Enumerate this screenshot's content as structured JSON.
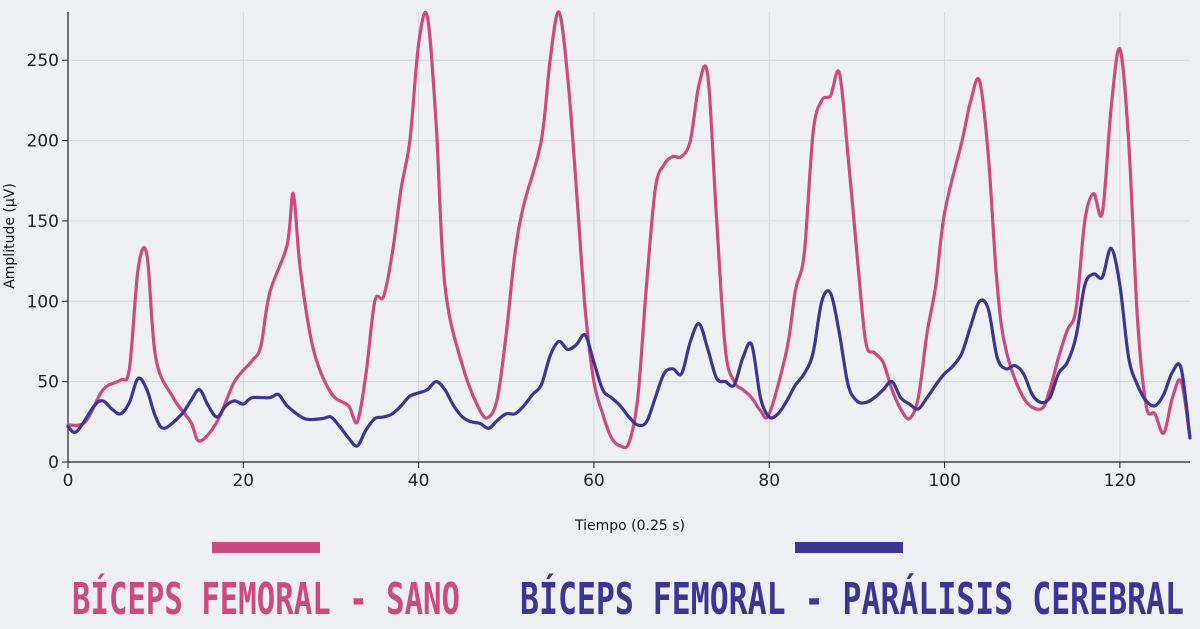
{
  "colors": {
    "background": "#eef0f3",
    "grid": "#d4d7dc",
    "axis": "#222222",
    "sano": "#cc4a7e",
    "paralisis": "#3b3594"
  },
  "chart_data": {
    "type": "line",
    "xlabel": "Tiempo (0.25 s)",
    "ylabel": "Amplitude (µV)",
    "xlim": [
      0,
      128
    ],
    "ylim": [
      0,
      280
    ],
    "x_ticks": [
      0,
      20,
      40,
      60,
      80,
      100,
      120
    ],
    "y_ticks": [
      0,
      50,
      100,
      150,
      200,
      250
    ],
    "grid": true,
    "legend_position": "bottom",
    "series": [
      {
        "name": "BÍCEPS FEMORAL - SANO",
        "color": "#cc4a7e",
        "points": [
          [
            0,
            23
          ],
          [
            2,
            25
          ],
          [
            4,
            45
          ],
          [
            6,
            51
          ],
          [
            7,
            58
          ],
          [
            8,
            120
          ],
          [
            9,
            129
          ],
          [
            10,
            65
          ],
          [
            12,
            40
          ],
          [
            14,
            25
          ],
          [
            15,
            13
          ],
          [
            17,
            25
          ],
          [
            19,
            50
          ],
          [
            21,
            63
          ],
          [
            22,
            72
          ],
          [
            23,
            105
          ],
          [
            25,
            135
          ],
          [
            25.7,
            167
          ],
          [
            26.5,
            120
          ],
          [
            28,
            70
          ],
          [
            30,
            43
          ],
          [
            32,
            35
          ],
          [
            33,
            25
          ],
          [
            34,
            55
          ],
          [
            35,
            100
          ],
          [
            36,
            103
          ],
          [
            37,
            130
          ],
          [
            38,
            170
          ],
          [
            39,
            200
          ],
          [
            40,
            260
          ],
          [
            41,
            277
          ],
          [
            42,
            210
          ],
          [
            43,
            110
          ],
          [
            45,
            60
          ],
          [
            47,
            32
          ],
          [
            48,
            28
          ],
          [
            49,
            40
          ],
          [
            50,
            80
          ],
          [
            51,
            130
          ],
          [
            52,
            160
          ],
          [
            54,
            200
          ],
          [
            55,
            250
          ],
          [
            56,
            280
          ],
          [
            57,
            240
          ],
          [
            58,
            170
          ],
          [
            59,
            95
          ],
          [
            60,
            50
          ],
          [
            61,
            30
          ],
          [
            62,
            15
          ],
          [
            63,
            10
          ],
          [
            64,
            12
          ],
          [
            65,
            40
          ],
          [
            66,
            110
          ],
          [
            67,
            170
          ],
          [
            68,
            185
          ],
          [
            69,
            190
          ],
          [
            70,
            190
          ],
          [
            71,
            200
          ],
          [
            72,
            235
          ],
          [
            73,
            240
          ],
          [
            74,
            150
          ],
          [
            75,
            70
          ],
          [
            76,
            50
          ],
          [
            77,
            45
          ],
          [
            78,
            40
          ],
          [
            79,
            32
          ],
          [
            80,
            30
          ],
          [
            82,
            70
          ],
          [
            83,
            107
          ],
          [
            84,
            130
          ],
          [
            85,
            205
          ],
          [
            86,
            225
          ],
          [
            87,
            228
          ],
          [
            88,
            242
          ],
          [
            89,
            190
          ],
          [
            90,
            130
          ],
          [
            91,
            75
          ],
          [
            92,
            68
          ],
          [
            93,
            62
          ],
          [
            94,
            45
          ],
          [
            95,
            33
          ],
          [
            96,
            27
          ],
          [
            97,
            40
          ],
          [
            98,
            80
          ],
          [
            99,
            110
          ],
          [
            100,
            155
          ],
          [
            102,
            200
          ],
          [
            103,
            225
          ],
          [
            104,
            237
          ],
          [
            105,
            190
          ],
          [
            106,
            110
          ],
          [
            107,
            70
          ],
          [
            109,
            40
          ],
          [
            111,
            33
          ],
          [
            112,
            45
          ],
          [
            113,
            65
          ],
          [
            114,
            82
          ],
          [
            115,
            95
          ],
          [
            116,
            150
          ],
          [
            117,
            167
          ],
          [
            118,
            155
          ],
          [
            119,
            220
          ],
          [
            120,
            257
          ],
          [
            121,
            200
          ],
          [
            122,
            90
          ],
          [
            123,
            35
          ],
          [
            124,
            30
          ],
          [
            125,
            18
          ],
          [
            126,
            40
          ],
          [
            127,
            50
          ],
          [
            128,
            15
          ]
        ]
      },
      {
        "name": "BÍCEPS FEMORAL - PARÁLISIS CEREBRAL",
        "color": "#3b3594",
        "points": [
          [
            0,
            22
          ],
          [
            1,
            19
          ],
          [
            3,
            35
          ],
          [
            4,
            38
          ],
          [
            5,
            33
          ],
          [
            6,
            30
          ],
          [
            7,
            37
          ],
          [
            8,
            52
          ],
          [
            9,
            45
          ],
          [
            10,
            28
          ],
          [
            11,
            21
          ],
          [
            13,
            30
          ],
          [
            14,
            38
          ],
          [
            15,
            45
          ],
          [
            16,
            35
          ],
          [
            17,
            28
          ],
          [
            18,
            35
          ],
          [
            19,
            38
          ],
          [
            20,
            36
          ],
          [
            21,
            40
          ],
          [
            23,
            40
          ],
          [
            24,
            42
          ],
          [
            25,
            35
          ],
          [
            27,
            27
          ],
          [
            29,
            27
          ],
          [
            30,
            28
          ],
          [
            31,
            22
          ],
          [
            32,
            15
          ],
          [
            33,
            10
          ],
          [
            34,
            20
          ],
          [
            35,
            27
          ],
          [
            36,
            28
          ],
          [
            37,
            30
          ],
          [
            38,
            35
          ],
          [
            39,
            41
          ],
          [
            40,
            43
          ],
          [
            41,
            45
          ],
          [
            42,
            50
          ],
          [
            43,
            45
          ],
          [
            44,
            35
          ],
          [
            45,
            28
          ],
          [
            46,
            25
          ],
          [
            47,
            24
          ],
          [
            48,
            21
          ],
          [
            49,
            26
          ],
          [
            50,
            30
          ],
          [
            51,
            30
          ],
          [
            52,
            35
          ],
          [
            53,
            42
          ],
          [
            54,
            48
          ],
          [
            55,
            66
          ],
          [
            56,
            75
          ],
          [
            57,
            70
          ],
          [
            58,
            73
          ],
          [
            59,
            79
          ],
          [
            60,
            62
          ],
          [
            61,
            45
          ],
          [
            62,
            40
          ],
          [
            63,
            35
          ],
          [
            64,
            28
          ],
          [
            65,
            23
          ],
          [
            66,
            25
          ],
          [
            67,
            40
          ],
          [
            68,
            55
          ],
          [
            69,
            58
          ],
          [
            70,
            55
          ],
          [
            71,
            75
          ],
          [
            72,
            86
          ],
          [
            73,
            70
          ],
          [
            74,
            52
          ],
          [
            75,
            50
          ],
          [
            76,
            48
          ],
          [
            77,
            65
          ],
          [
            78,
            73
          ],
          [
            79,
            40
          ],
          [
            80,
            28
          ],
          [
            81,
            30
          ],
          [
            82,
            38
          ],
          [
            83,
            48
          ],
          [
            84,
            55
          ],
          [
            85,
            68
          ],
          [
            86,
            100
          ],
          [
            87,
            105
          ],
          [
            88,
            80
          ],
          [
            89,
            48
          ],
          [
            90,
            38
          ],
          [
            91,
            37
          ],
          [
            92,
            40
          ],
          [
            93,
            45
          ],
          [
            94,
            50
          ],
          [
            95,
            40
          ],
          [
            96,
            36
          ],
          [
            97,
            33
          ],
          [
            98,
            40
          ],
          [
            99,
            48
          ],
          [
            100,
            55
          ],
          [
            101,
            60
          ],
          [
            102,
            68
          ],
          [
            103,
            85
          ],
          [
            104,
            100
          ],
          [
            105,
            95
          ],
          [
            106,
            65
          ],
          [
            107,
            58
          ],
          [
            108,
            60
          ],
          [
            109,
            55
          ],
          [
            110,
            42
          ],
          [
            111,
            37
          ],
          [
            112,
            40
          ],
          [
            113,
            55
          ],
          [
            114,
            62
          ],
          [
            115,
            78
          ],
          [
            116,
            110
          ],
          [
            117,
            117
          ],
          [
            118,
            115
          ],
          [
            119,
            133
          ],
          [
            120,
            110
          ],
          [
            121,
            65
          ],
          [
            122,
            48
          ],
          [
            123,
            38
          ],
          [
            124,
            35
          ],
          [
            125,
            42
          ],
          [
            126,
            56
          ],
          [
            127,
            58
          ],
          [
            128,
            15
          ]
        ]
      }
    ]
  }
}
